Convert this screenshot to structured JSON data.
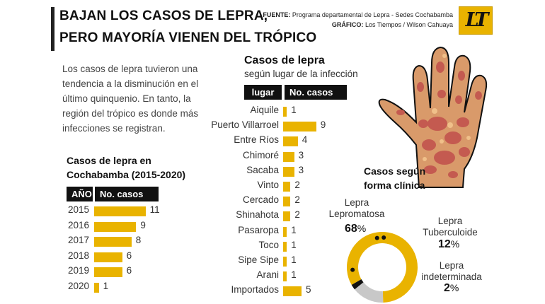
{
  "header": {
    "title_line1": "BAJAN LOS CASOS DE LEPRA,",
    "title_line2": "PERO MAYORÍA VIENEN DEL TRÓPICO",
    "source_label": "FUENTE:",
    "source_text": "Programa departamental de Lepra - Sedes Cochabamba",
    "graphic_label": "GRÁFICO:",
    "graphic_text": "Los Tiempos / Wilson Cahuaya",
    "logo_text": "LT"
  },
  "intro": {
    "text": "Los casos de lepra tuvieron una tendencia a la disminución en el último quinquenio. En tanto, la región del trópico es donde más infecciones se registran."
  },
  "colors": {
    "accent": "#e9b300",
    "dark": "#111111",
    "grey": "#c8c8c8",
    "text": "#333333"
  },
  "chart_data": [
    {
      "type": "bar",
      "title_line1": "Casos de lepra en",
      "title_line2": "Cochabamba (2015-2020)",
      "col_category": "AÑO",
      "col_value": "No. casos",
      "categories": [
        "2015",
        "2016",
        "2017",
        "2018",
        "2019",
        "2020"
      ],
      "values": [
        11,
        9,
        8,
        6,
        6,
        1
      ],
      "orientation": "horizontal"
    },
    {
      "type": "bar",
      "title": "Casos de lepra",
      "subtitle": "según lugar de la infección",
      "col_category": "lugar",
      "col_value": "No. casos",
      "categories": [
        "Aiquile",
        "Puerto Villarroel",
        "Entre Ríos",
        "Chimoré",
        "Sacaba",
        "Vinto",
        "Cercado",
        "Shinahota",
        "Pasaropa",
        "Toco",
        "Sipe Sipe",
        "Arani",
        "Importados"
      ],
      "values": [
        1,
        9,
        4,
        3,
        3,
        2,
        2,
        2,
        1,
        1,
        1,
        1,
        5
      ],
      "orientation": "horizontal"
    },
    {
      "type": "pie",
      "title_line1": "Casos según",
      "title_line2": "forma clínica",
      "slices": [
        {
          "name_line1": "Lepra",
          "name_line2": "Lepromatosa",
          "value": 68,
          "color": "#e9b300"
        },
        {
          "name_line1": "Lepra",
          "name_line2": "Tuberculoide",
          "value": 12,
          "color": "#c8c8c8"
        },
        {
          "name_line1": "Lepra",
          "name_line2": "indeterminada",
          "value": 2,
          "color": "#111111"
        }
      ],
      "unit": "%"
    }
  ]
}
